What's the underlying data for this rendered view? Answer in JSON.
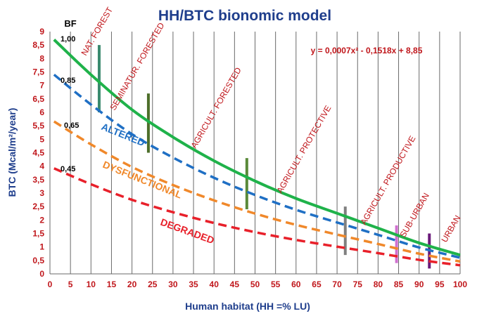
{
  "chart_data": {
    "type": "line",
    "title": "HH/BTC bionomic model",
    "xlabel": "Human habitat (HH =% LU)",
    "ylabel": "BTC (Mcal/m²/year)",
    "xlim": [
      0,
      100
    ],
    "ylim": [
      0,
      9
    ],
    "x_ticks": [
      "0",
      "5",
      "10",
      "15",
      "20",
      "25",
      "30",
      "35",
      "40",
      "45",
      "50",
      "55",
      "60",
      "65",
      "70",
      "75",
      "80",
      "85",
      "90",
      "95",
      "100"
    ],
    "y_ticks": [
      "0",
      "0,5",
      "1",
      "1,5",
      "2",
      "2,5",
      "3",
      "3,5",
      "4",
      "4,5",
      "5",
      "5,5",
      "6",
      "6,5",
      "7",
      "7,5",
      "8",
      "8,5",
      "9"
    ],
    "grid": "vertical",
    "equation": "y = 0,0007x² - 0,1518x + 8,85",
    "bf_header": "BF",
    "series": [
      {
        "factor": 1.0,
        "bf_label": "1,00",
        "color": "#1fb24a",
        "dashed": false,
        "x": [
          1,
          10,
          20,
          30,
          40,
          50,
          60,
          70,
          80,
          90,
          100
        ],
        "y": [
          8.7,
          7.4,
          6.1,
          5.08,
          4.2,
          3.45,
          2.8,
          2.25,
          1.7,
          1.15,
          0.7
        ]
      },
      {
        "factor": 0.85,
        "bf_label": "0,85",
        "name": "ALTERED",
        "color": "#1f6fc4",
        "dashed": true,
        "x": [
          1,
          10,
          20,
          30,
          40,
          50,
          60,
          70,
          80,
          90,
          100
        ],
        "y": [
          7.4,
          6.29,
          5.19,
          4.32,
          3.57,
          2.93,
          2.38,
          1.91,
          1.45,
          0.98,
          0.6
        ]
      },
      {
        "factor": 0.65,
        "bf_label": "0,65",
        "name": "DYSFUNCTIONAL",
        "color": "#f0882a",
        "dashed": true,
        "x": [
          1,
          10,
          20,
          30,
          40,
          50,
          60,
          70,
          80,
          90,
          100
        ],
        "y": [
          5.66,
          4.81,
          3.97,
          3.3,
          2.73,
          2.24,
          1.82,
          1.46,
          1.11,
          0.75,
          0.46
        ]
      },
      {
        "factor": 0.45,
        "bf_label": "0,45",
        "name": "DEGRADED",
        "color": "#e8202a",
        "dashed": true,
        "x": [
          1,
          10,
          20,
          30,
          40,
          50,
          60,
          70,
          80,
          90,
          100
        ],
        "y": [
          3.92,
          3.33,
          2.75,
          2.29,
          1.89,
          1.55,
          1.26,
          1.01,
          0.77,
          0.52,
          0.32
        ]
      }
    ],
    "landscape_types": [
      {
        "label": "NAT. FOREST",
        "x": 12,
        "y_low": 6.0,
        "y_high": 8.5,
        "color": "#3a8a6e"
      },
      {
        "label": "SEMINATUR. FORESTED",
        "x": 24,
        "y_low": 4.5,
        "y_high": 6.7,
        "color": "#4d6e2a"
      },
      {
        "label": "AGRICULT. FORESTED",
        "x": 48,
        "y_low": 2.4,
        "y_high": 4.3,
        "color": "#5a8a3a"
      },
      {
        "label": "AGRICULT. PROTECTIVE",
        "x": 72,
        "y_low": 0.7,
        "y_high": 2.5,
        "color": "#808080"
      },
      {
        "label": "AGRICULT. PRODUCTIVE",
        "x": 84.5,
        "y_low": 0.4,
        "y_high": 1.8,
        "color": "#d070d0"
      },
      {
        "label": "SUB-URBAN",
        "x": 92.5,
        "y_low": 0.2,
        "y_high": 1.5,
        "color": "#6a1a7a"
      },
      {
        "label": "URBAN",
        "x": 98.5,
        "y_low": null,
        "y_high": null,
        "color": null
      }
    ]
  }
}
